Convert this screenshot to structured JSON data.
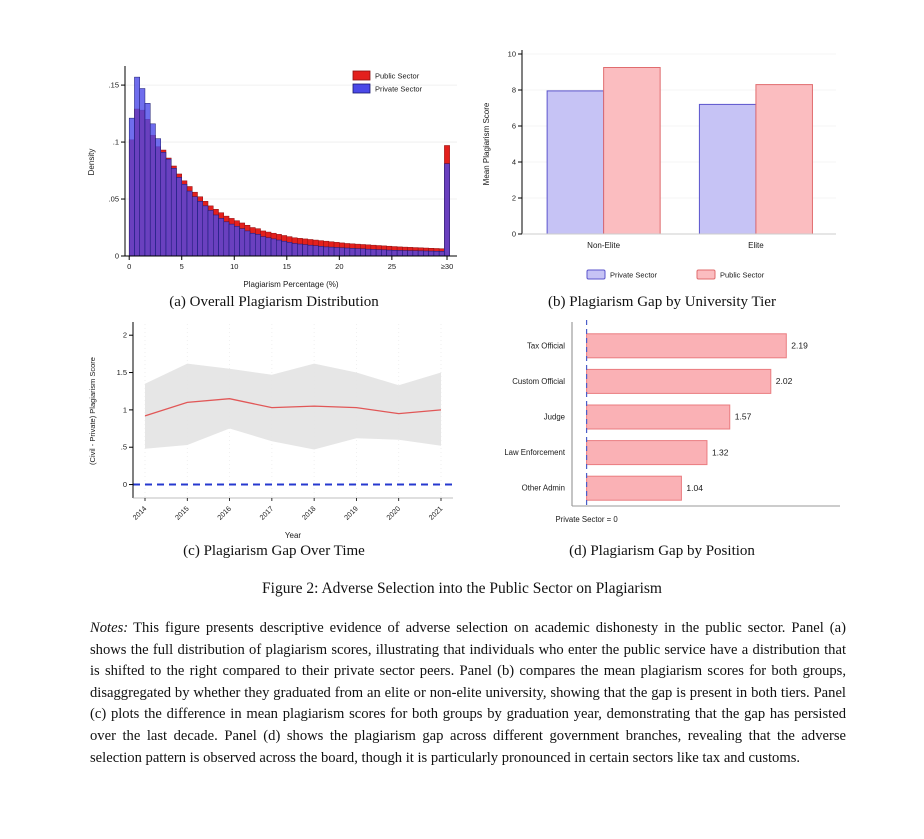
{
  "figure": {
    "caption_a": "(a) Overall Plagiarism Distribution",
    "caption_b": "(b) Plagiarism Gap by University Tier",
    "caption_c": "(c) Plagiarism Gap Over Time",
    "caption_d": "(d) Plagiarism Gap by Position",
    "title": "Figure 2: Adverse Selection into the Public Sector on Plagiarism",
    "notes_label": "Notes:",
    "notes_text": "This figure presents descriptive evidence of adverse selection on academic dishonesty in the public sector. Panel (a) shows the full distribution of plagiarism scores, illustrating that individuals who enter the public service have a distribution that is shifted to the right compared to their private sector peers. Panel (b) compares the mean plagiarism scores for both groups, disaggregated by whether they graduated from an elite or non-elite university, showing that the gap is present in both tiers. Panel (c) plots the difference in mean plagiarism scores for both groups by graduation year, demonstrating that the gap has persisted over the last decade. Panel (d) shows the plagiarism gap across different government branches, revealing that the adverse selection pattern is observed across the board, though it is particularly pronounced in certain sectors like tax and customs."
  },
  "chart_data": [
    {
      "id": "panel_a",
      "type": "bar",
      "subtype": "histogram",
      "title": "",
      "xlabel": "Plagiarism Percentage (%)",
      "ylabel": "Density",
      "bin_width": 0.5,
      "ylim": [
        0,
        0.165
      ],
      "x_ticks": [
        {
          "v": 0,
          "label": "0"
        },
        {
          "v": 5,
          "label": "5"
        },
        {
          "v": 10,
          "label": "10"
        },
        {
          "v": 15,
          "label": "15"
        },
        {
          "v": 20,
          "label": "20"
        },
        {
          "v": 25,
          "label": "25"
        },
        {
          "v": 30.25,
          "label": "≥30"
        }
      ],
      "y_ticks": [
        {
          "v": 0,
          "label": "0"
        },
        {
          "v": 0.05,
          "label": ".05"
        },
        {
          "v": 0.1,
          "label": ".1"
        },
        {
          "v": 0.15,
          "label": ".15"
        }
      ],
      "legend_position": "top-right",
      "series": [
        {
          "name": "Public Sector",
          "color": "#e3201d",
          "stroke": "#8d0f0f",
          "opacity": 1,
          "values": [
            0.102,
            0.129,
            0.128,
            0.12,
            0.106,
            0.096,
            0.093,
            0.086,
            0.079,
            0.072,
            0.066,
            0.061,
            0.056,
            0.052,
            0.048,
            0.044,
            0.041,
            0.038,
            0.035,
            0.033,
            0.031,
            0.029,
            0.027,
            0.025,
            0.024,
            0.022,
            0.021,
            0.02,
            0.019,
            0.018,
            0.017,
            0.016,
            0.0155,
            0.015,
            0.0145,
            0.014,
            0.0135,
            0.013,
            0.0125,
            0.012,
            0.0115,
            0.011,
            0.0107,
            0.0104,
            0.0101,
            0.0098,
            0.0095,
            0.0092,
            0.0089,
            0.0086,
            0.0083,
            0.008,
            0.0078,
            0.0076,
            0.0074,
            0.0072,
            0.007,
            0.0068,
            0.0066,
            0.0064,
            0.097
          ]
        },
        {
          "name": "Private Sector",
          "color": "#4b49e8",
          "stroke": "#18186e",
          "opacity": 0.8,
          "values": [
            0.121,
            0.157,
            0.147,
            0.134,
            0.116,
            0.103,
            0.091,
            0.085,
            0.077,
            0.069,
            0.063,
            0.057,
            0.052,
            0.048,
            0.044,
            0.04,
            0.036,
            0.033,
            0.03,
            0.028,
            0.026,
            0.024,
            0.022,
            0.02,
            0.019,
            0.017,
            0.016,
            0.015,
            0.014,
            0.013,
            0.012,
            0.011,
            0.0105,
            0.01,
            0.0095,
            0.009,
            0.0085,
            0.008,
            0.0078,
            0.0075,
            0.0072,
            0.007,
            0.0067,
            0.0065,
            0.0063,
            0.006,
            0.0058,
            0.0056,
            0.0054,
            0.0052,
            0.005,
            0.0049,
            0.0048,
            0.0047,
            0.0046,
            0.0045,
            0.0044,
            0.0043,
            0.0042,
            0.0041,
            0.081
          ]
        }
      ]
    },
    {
      "id": "panel_b",
      "type": "bar",
      "title": "",
      "categories": [
        "Non-Elite",
        "Elite"
      ],
      "ylabel": "Mean Plagiarism Score",
      "ylim": [
        0,
        10
      ],
      "y_ticks": [
        0,
        2,
        4,
        6,
        8,
        10
      ],
      "legend_position": "bottom",
      "series": [
        {
          "name": "Private Sector",
          "fill": "#c6c3f5",
          "stroke": "#5b54cc",
          "values": [
            7.95,
            7.2
          ]
        },
        {
          "name": "Public Sector",
          "fill": "#fbbdc0",
          "stroke": "#e06c6e",
          "values": [
            9.25,
            8.3
          ]
        }
      ]
    },
    {
      "id": "panel_c",
      "type": "line",
      "title": "",
      "x": [
        "2014",
        "2015",
        "2016",
        "2017",
        "2018",
        "2019",
        "2020",
        "2021"
      ],
      "line": [
        0.92,
        1.1,
        1.15,
        1.03,
        1.05,
        1.03,
        0.95,
        1.0
      ],
      "ci_upper": [
        1.35,
        1.62,
        1.55,
        1.47,
        1.62,
        1.5,
        1.33,
        1.5
      ],
      "ci_lower": [
        0.48,
        0.53,
        0.75,
        0.58,
        0.47,
        0.62,
        0.6,
        0.52
      ],
      "line_color": "#e15757",
      "band_color": "#e3e3e3",
      "ref_line": {
        "y": 0,
        "color": "#2638cf",
        "style": "dashed"
      },
      "xlabel": "Year",
      "ylabel": "(Civil - Private) Plagiarism Score",
      "ylim": [
        -0.18,
        2.15
      ],
      "y_ticks": [
        {
          "v": 0,
          "label": "0"
        },
        {
          "v": 0.5,
          "label": ".5"
        },
        {
          "v": 1,
          "label": "1"
        },
        {
          "v": 1.5,
          "label": "1.5"
        },
        {
          "v": 2,
          "label": "2"
        }
      ]
    },
    {
      "id": "panel_d",
      "type": "bar",
      "subtype": "horizontal",
      "title": "",
      "categories": [
        "Tax Official",
        "Custom Official",
        "Judge",
        "Law Enforcement",
        "Other Admin"
      ],
      "values": [
        2.19,
        2.02,
        1.57,
        1.32,
        1.04
      ],
      "value_labels": [
        "2.19",
        "2.02",
        "1.57",
        "1.32",
        "1.04"
      ],
      "bar_fill": "#fab1b5",
      "bar_stroke": "#ea7c80",
      "xlim": [
        -0.16,
        2.45
      ],
      "ref_line": {
        "x": 0,
        "color": "#4a5ec9",
        "style": "dashed",
        "label": "Private Sector = 0"
      }
    }
  ]
}
